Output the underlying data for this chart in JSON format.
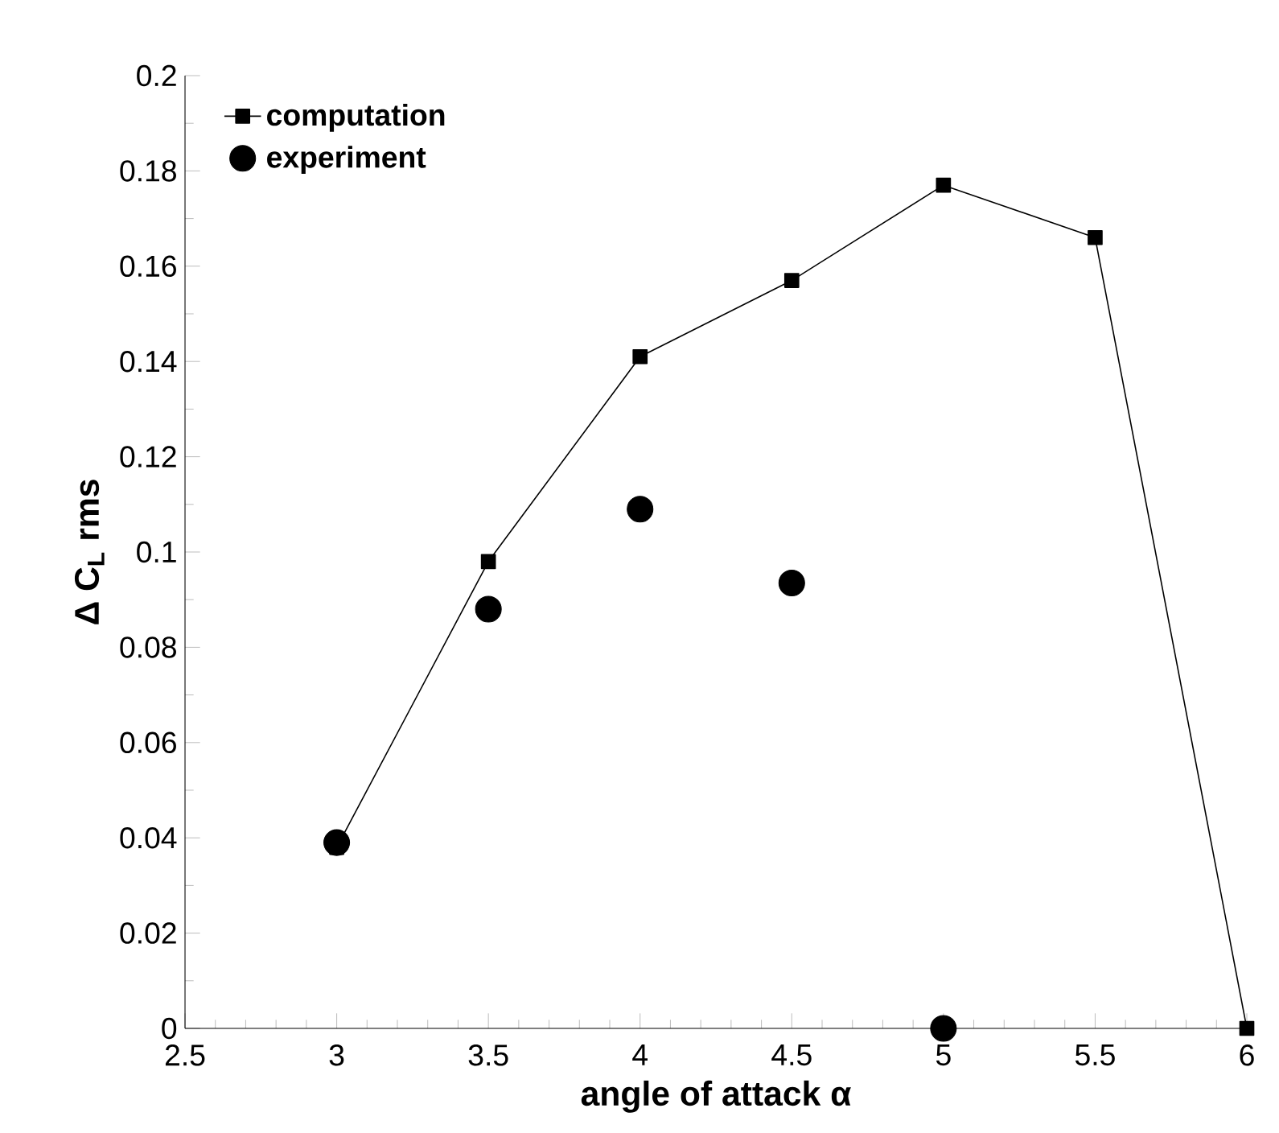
{
  "chart_data": {
    "type": "line",
    "xlabel": "angle of attack α",
    "ylabel": "Δ C$_{L}$ rms",
    "xlim": [
      2.5,
      6
    ],
    "ylim": [
      0,
      0.2
    ],
    "xticks": [
      2.5,
      3,
      3.5,
      4,
      4.5,
      5,
      5.5,
      6
    ],
    "yticks": [
      0,
      0.02,
      0.04,
      0.06,
      0.08,
      0.1,
      0.12,
      0.14,
      0.16,
      0.18,
      0.2
    ],
    "legend": "top left",
    "grid": false,
    "series": [
      {
        "name": "computation",
        "marker": "square",
        "color": "#000000",
        "x": [
          3,
          3.5,
          4,
          4.5,
          5,
          5.5,
          6
        ],
        "values": [
          0.038,
          0.098,
          0.141,
          0.157,
          0.177,
          0.166,
          0
        ]
      },
      {
        "name": "experiment",
        "type": "scatter",
        "marker": "circle",
        "color": "#000000",
        "x": [
          3,
          3.5,
          4,
          4.5,
          5
        ],
        "values": [
          0.039,
          0.088,
          0.109,
          0.0935,
          0
        ]
      }
    ]
  }
}
